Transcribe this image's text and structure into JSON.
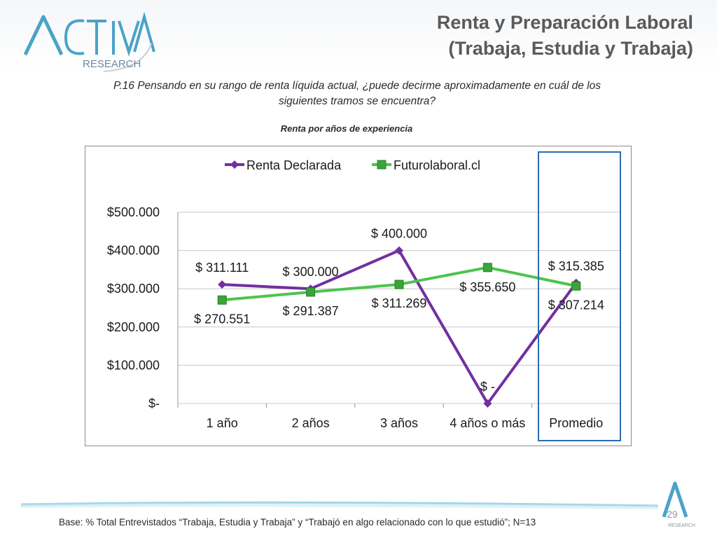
{
  "header": {
    "logo_main": "ACTIVA",
    "logo_sub": "RESEARCH",
    "title_line1": "Renta y Preparación Laboral",
    "title_line2": "(Trabaja, Estudia y Trabaja)"
  },
  "question": {
    "line1": "P.16  Pensando en su rango de renta líquida actual, ¿puede decirme aproximadamente en cuál de los",
    "line2": "siguientes tramos se encuentra?"
  },
  "subtitle": "Renta por años de experiencia",
  "footer": {
    "base_note": "Base: % Total Entrevistados “Trabaja, Estudia y Trabaja” y “Trabajó en algo relacionado con lo que estudió”; N=13",
    "page_number": "29",
    "mini_logo_text": "RESEARCH"
  },
  "colors": {
    "renta_declarada": "#7030a0",
    "futurolaboral": "#4dc44d",
    "futurolaboral_marker": "#3aa53a",
    "highlight_box": "#2b6cb0",
    "logo": "#4aa3c8"
  },
  "chart_data": {
    "type": "line",
    "title": "",
    "categories": [
      "1 año",
      "2 años",
      "3 años",
      "4 años o más",
      "Promedio"
    ],
    "ylim": [
      0,
      500000
    ],
    "yticks": [
      0,
      100000,
      200000,
      300000,
      400000,
      500000
    ],
    "ytick_labels": [
      "$-",
      "$100.000",
      "$200.000",
      "$300.000",
      "$400.000",
      "$500.000"
    ],
    "grid": true,
    "legend_position": "top",
    "highlighted_category": "Promedio",
    "series": [
      {
        "name": "Renta Declarada",
        "marker": "diamond",
        "values": [
          311111,
          300000,
          400000,
          0,
          315385
        ],
        "data_labels": [
          "$ 311.111",
          "$ 300.000",
          "$ 400.000",
          "$ -",
          "$ 315.385"
        ]
      },
      {
        "name": "Futurolaboral.cl",
        "marker": "square",
        "values": [
          270551,
          291387,
          311269,
          355650,
          307214
        ],
        "data_labels": [
          "$ 270.551",
          "$ 291.387",
          "$ 311.269",
          "$ 355.650",
          "$ 307.214"
        ]
      }
    ]
  }
}
